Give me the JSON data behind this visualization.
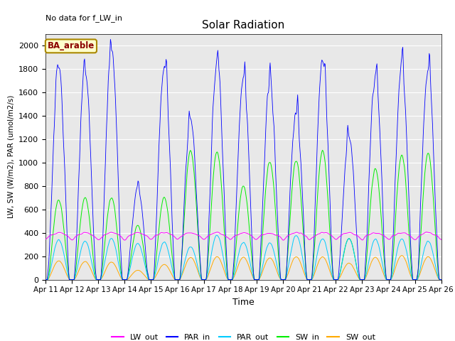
{
  "title": "Solar Radiation",
  "note": "No data for f_LW_in",
  "legend_label": "BA_arable",
  "xlabel": "Time",
  "ylabel": "LW, SW (W/m2), PAR (umol/m2/s)",
  "ylim": [
    0,
    2100
  ],
  "start_day": 11,
  "end_day": 26,
  "colors": {
    "LW_out": "#ff00ff",
    "PAR_in": "#0000ff",
    "PAR_out": "#00ccff",
    "SW_in": "#00ee00",
    "SW_out": "#ffaa00"
  },
  "bg_color": "#e8e8e8",
  "grid_color": "#ffffff"
}
